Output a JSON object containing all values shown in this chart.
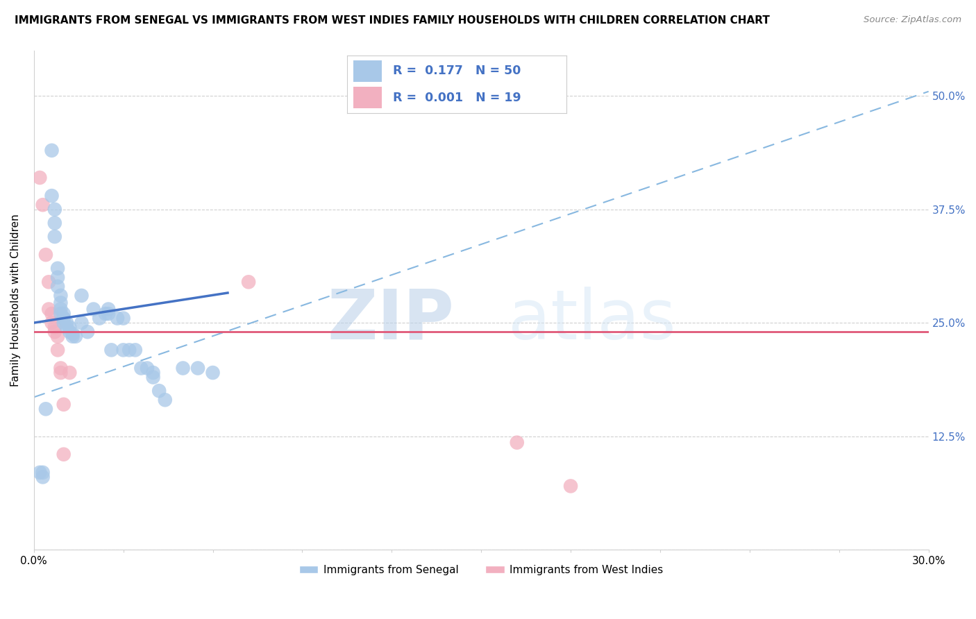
{
  "title": "IMMIGRANTS FROM SENEGAL VS IMMIGRANTS FROM WEST INDIES FAMILY HOUSEHOLDS WITH CHILDREN CORRELATION CHART",
  "source": "Source: ZipAtlas.com",
  "ylabel": "Family Households with Children",
  "xlim": [
    0.0,
    0.3
  ],
  "ylim": [
    0.0,
    0.55
  ],
  "blue_R": 0.177,
  "blue_N": 50,
  "pink_R": 0.001,
  "pink_N": 19,
  "blue_color": "#a8c8e8",
  "pink_color": "#f2b0c0",
  "blue_line_color": "#4472c4",
  "pink_line_color": "#e05878",
  "dashed_line_color": "#88b8e0",
  "grid_color": "#d0d0d0",
  "watermark_zip": "ZIP",
  "watermark_atlas": "atlas",
  "legend_label_blue": "Immigrants from Senegal",
  "legend_label_pink": "Immigrants from West Indies",
  "blue_points_x": [
    0.006,
    0.006,
    0.007,
    0.007,
    0.007,
    0.008,
    0.008,
    0.008,
    0.009,
    0.009,
    0.009,
    0.009,
    0.01,
    0.01,
    0.01,
    0.01,
    0.011,
    0.011,
    0.012,
    0.012,
    0.013,
    0.013,
    0.014,
    0.016,
    0.016,
    0.018,
    0.02,
    0.022,
    0.024,
    0.025,
    0.025,
    0.026,
    0.028,
    0.03,
    0.03,
    0.032,
    0.034,
    0.036,
    0.038,
    0.04,
    0.04,
    0.042,
    0.044,
    0.05,
    0.055,
    0.06,
    0.002,
    0.003,
    0.003,
    0.004
  ],
  "blue_points_y": [
    0.44,
    0.39,
    0.375,
    0.36,
    0.345,
    0.31,
    0.3,
    0.29,
    0.28,
    0.272,
    0.265,
    0.26,
    0.26,
    0.255,
    0.255,
    0.25,
    0.25,
    0.245,
    0.245,
    0.24,
    0.238,
    0.235,
    0.235,
    0.28,
    0.25,
    0.24,
    0.265,
    0.255,
    0.26,
    0.26,
    0.265,
    0.22,
    0.255,
    0.255,
    0.22,
    0.22,
    0.22,
    0.2,
    0.2,
    0.195,
    0.19,
    0.175,
    0.165,
    0.2,
    0.2,
    0.195,
    0.085,
    0.08,
    0.085,
    0.155
  ],
  "pink_points_x": [
    0.002,
    0.003,
    0.004,
    0.005,
    0.005,
    0.006,
    0.006,
    0.007,
    0.007,
    0.008,
    0.008,
    0.009,
    0.009,
    0.01,
    0.01,
    0.012,
    0.072,
    0.18,
    0.162
  ],
  "pink_points_y": [
    0.41,
    0.38,
    0.325,
    0.295,
    0.265,
    0.26,
    0.25,
    0.245,
    0.24,
    0.235,
    0.22,
    0.2,
    0.195,
    0.16,
    0.105,
    0.195,
    0.295,
    0.07,
    0.118
  ],
  "blue_trendline_x": [
    0.0,
    0.065
  ],
  "blue_trendline_y": [
    0.25,
    0.283
  ],
  "pink_trendline_x": [
    0.0,
    0.3
  ],
  "pink_trendline_y": [
    0.24,
    0.24
  ],
  "dashed_trendline_x": [
    0.0,
    0.3
  ],
  "dashed_trendline_y": [
    0.168,
    0.505
  ]
}
